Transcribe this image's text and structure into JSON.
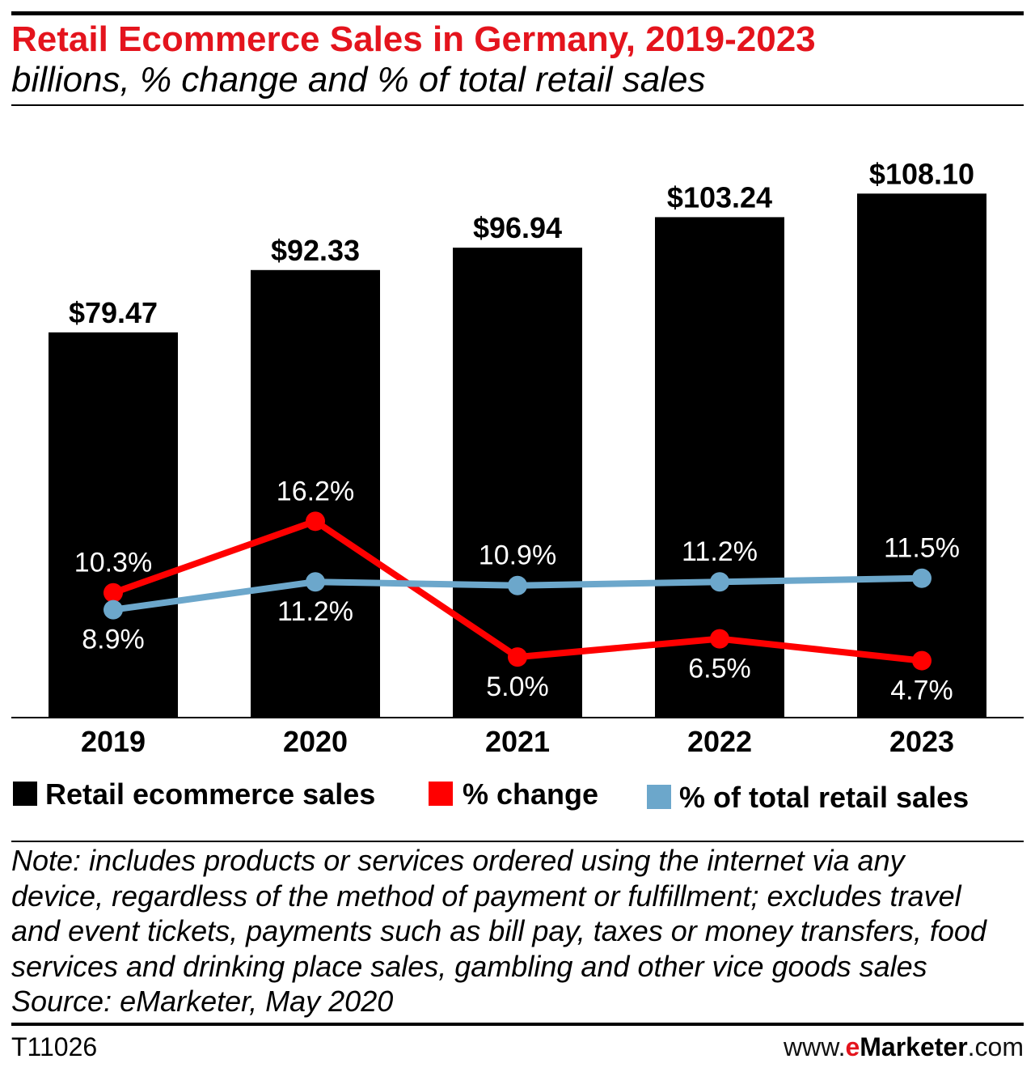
{
  "colors": {
    "title": "#e4141d",
    "brand_accent": "#e4141d"
  },
  "chart_data": {
    "type": "bar",
    "title": "Retail Ecommerce Sales in Germany, 2019-2023",
    "subtitle": "billions, % change and % of total retail sales",
    "categories": [
      "2019",
      "2020",
      "2021",
      "2022",
      "2023"
    ],
    "series": [
      {
        "name": "Retail ecommerce sales",
        "type": "bar",
        "color": "#000000",
        "values": [
          79.47,
          92.33,
          96.94,
          103.24,
          108.1
        ],
        "labels": [
          "$79.47",
          "$92.33",
          "$96.94",
          "$103.24",
          "$108.10"
        ]
      },
      {
        "name": "% change",
        "type": "line",
        "color": "#ff0000",
        "values": [
          10.3,
          16.2,
          5.0,
          6.5,
          4.7
        ],
        "labels": [
          "10.3%",
          "16.2%",
          "5.0%",
          "6.5%",
          "4.7%"
        ]
      },
      {
        "name": "% of total retail sales",
        "type": "line",
        "color": "#6ca7cb",
        "values": [
          8.9,
          11.2,
          10.9,
          11.2,
          11.5
        ],
        "labels": [
          "8.9%",
          "11.2%",
          "10.9%",
          "11.2%",
          "11.5%"
        ]
      }
    ],
    "ylim": [
      0,
      120
    ],
    "y2lim": [
      0,
      48
    ],
    "grid": false,
    "legend": "bottom"
  },
  "note": [
    "Note: includes products or services ordered using the internet via any",
    "device, regardless of the method of payment or fulfillment; excludes travel",
    "and event tickets, payments such as bill pay, taxes or money transfers, food",
    "services and drinking place sales, gambling and other vice goods sales"
  ],
  "source": "Source: eMarketer, May 2020",
  "chart_id": "T11026",
  "brand": {
    "prefix": "www.",
    "accent": "e",
    "name": "Marketer",
    "suffix": ".com"
  }
}
